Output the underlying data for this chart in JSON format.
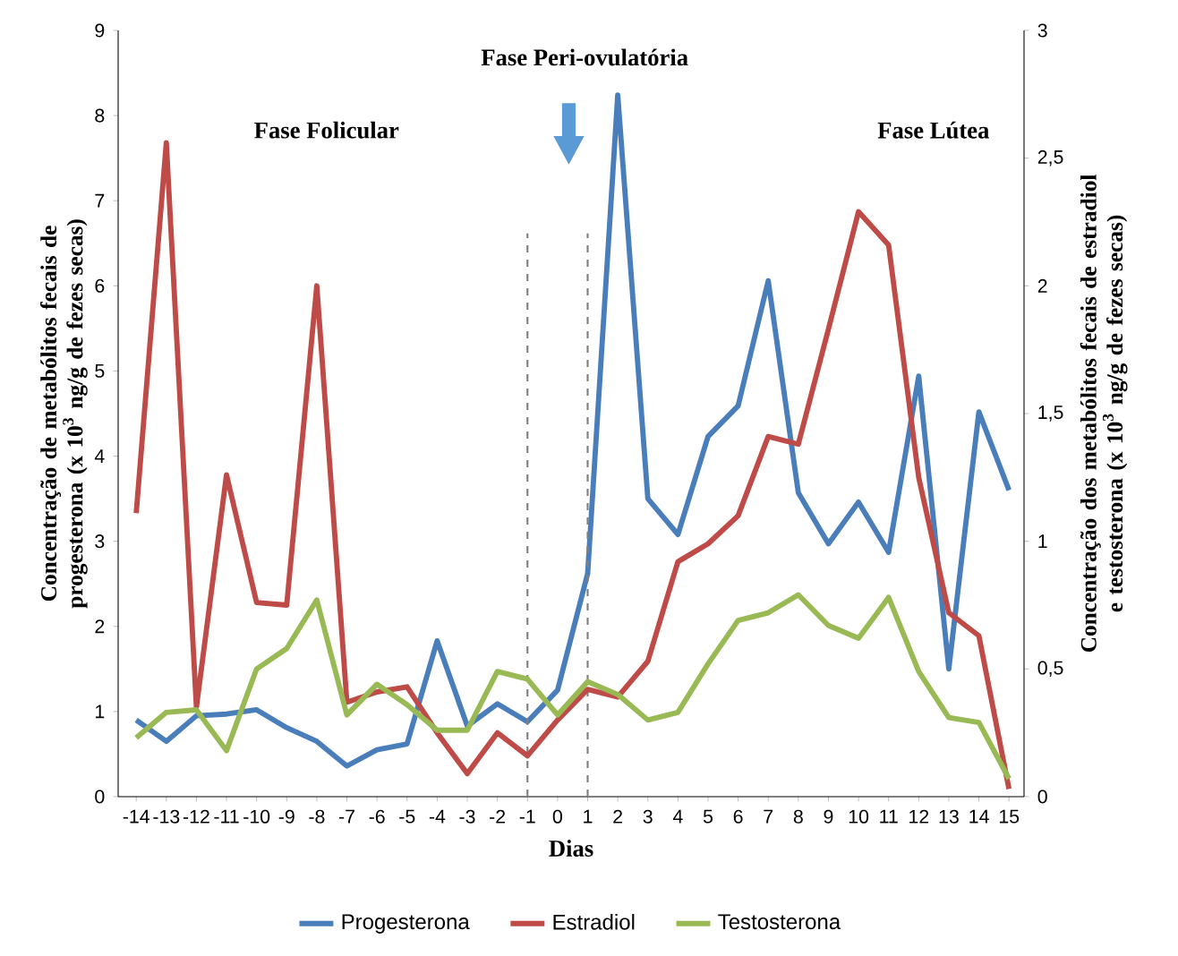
{
  "chart_data": {
    "type": "line",
    "xlabel": "Dias",
    "ylabel": "Concentração de metabólitos fecais de progesterona (x 10$^{3}$ ng/g de fezes secas)",
    "y2label": "Concentração dos metabólitos fecais de estradiol e testosterona (x 10$^{3}$ ng/g de fezes secas)",
    "x": [
      -14,
      -13,
      -12,
      -11,
      -10,
      -9,
      -8,
      -7,
      -6,
      -5,
      -4,
      -3,
      -2,
      -1,
      0,
      1,
      2,
      3,
      4,
      5,
      6,
      7,
      8,
      9,
      10,
      11,
      12,
      13,
      14,
      15
    ],
    "xlim": [
      -14.6,
      15.5
    ],
    "xticks": [
      -14,
      -13,
      -12,
      -11,
      -10,
      -9,
      -8,
      -7,
      -6,
      -5,
      -4,
      -3,
      -2,
      -1,
      0,
      1,
      2,
      3,
      4,
      5,
      6,
      7,
      8,
      9,
      10,
      11,
      12,
      13,
      14,
      15
    ],
    "ylim": [
      0,
      9
    ],
    "yticks": [
      0,
      1,
      2,
      3,
      4,
      5,
      6,
      7,
      8,
      9
    ],
    "y2lim": [
      0,
      3
    ],
    "y2ticks": [
      0,
      {
        "value": 0.5,
        "label": "0,5"
      },
      1,
      {
        "value": 1.5,
        "label": "1,5"
      },
      2,
      {
        "value": 2.5,
        "label": "2,5"
      },
      3
    ],
    "series": [
      {
        "name": "Progesterona",
        "color": "#4a7ebb",
        "values": [
          0.9,
          0.65,
          0.95,
          0.97,
          1.02,
          0.81,
          0.65,
          0.36,
          0.55,
          0.62,
          1.83,
          0.83,
          1.09,
          0.88,
          1.25,
          2.62,
          8.24,
          3.5,
          3.08,
          4.23,
          4.59,
          6.06,
          3.57,
          2.97,
          3.46,
          2.87,
          4.94,
          1.5,
          4.52,
          3.6
        ]
      },
      {
        "name": "Estradiol",
        "color": "#be4b48",
        "axis": "y2",
        "values": [
          1.11,
          2.56,
          0.35,
          1.26,
          0.76,
          0.75,
          2.0,
          0.37,
          0.41,
          0.43,
          0.25,
          0.09,
          0.25,
          0.16,
          0.3,
          0.42,
          0.39,
          0.53,
          0.92,
          0.99,
          1.1,
          1.41,
          1.38,
          1.83,
          2.29,
          2.16,
          1.25,
          0.72,
          0.63,
          0.03
        ]
      },
      {
        "name": "Testosterona",
        "color": "#98b954",
        "axis": "y2",
        "values": [
          0.23,
          0.33,
          0.34,
          0.18,
          0.5,
          0.58,
          0.77,
          0.32,
          0.44,
          0.36,
          0.26,
          0.26,
          0.49,
          0.46,
          0.32,
          0.45,
          0.4,
          0.3,
          0.33,
          0.52,
          0.69,
          0.72,
          0.79,
          0.67,
          0.62,
          0.78,
          0.49,
          0.31,
          0.29,
          0.07
        ]
      }
    ],
    "ref_lines": [
      {
        "axis": "x",
        "value": -1,
        "color": "#808080",
        "line_style": "dashed"
      },
      {
        "axis": "x",
        "value": 1,
        "color": "#808080",
        "line_style": "dashed"
      }
    ],
    "annotations": [
      "Fase Folicular",
      "Fase Peri-ovulatória",
      "Fase Lútea"
    ],
    "legend": "bottom",
    "grid": false,
    "marker": "none",
    "line_style": "solid"
  }
}
